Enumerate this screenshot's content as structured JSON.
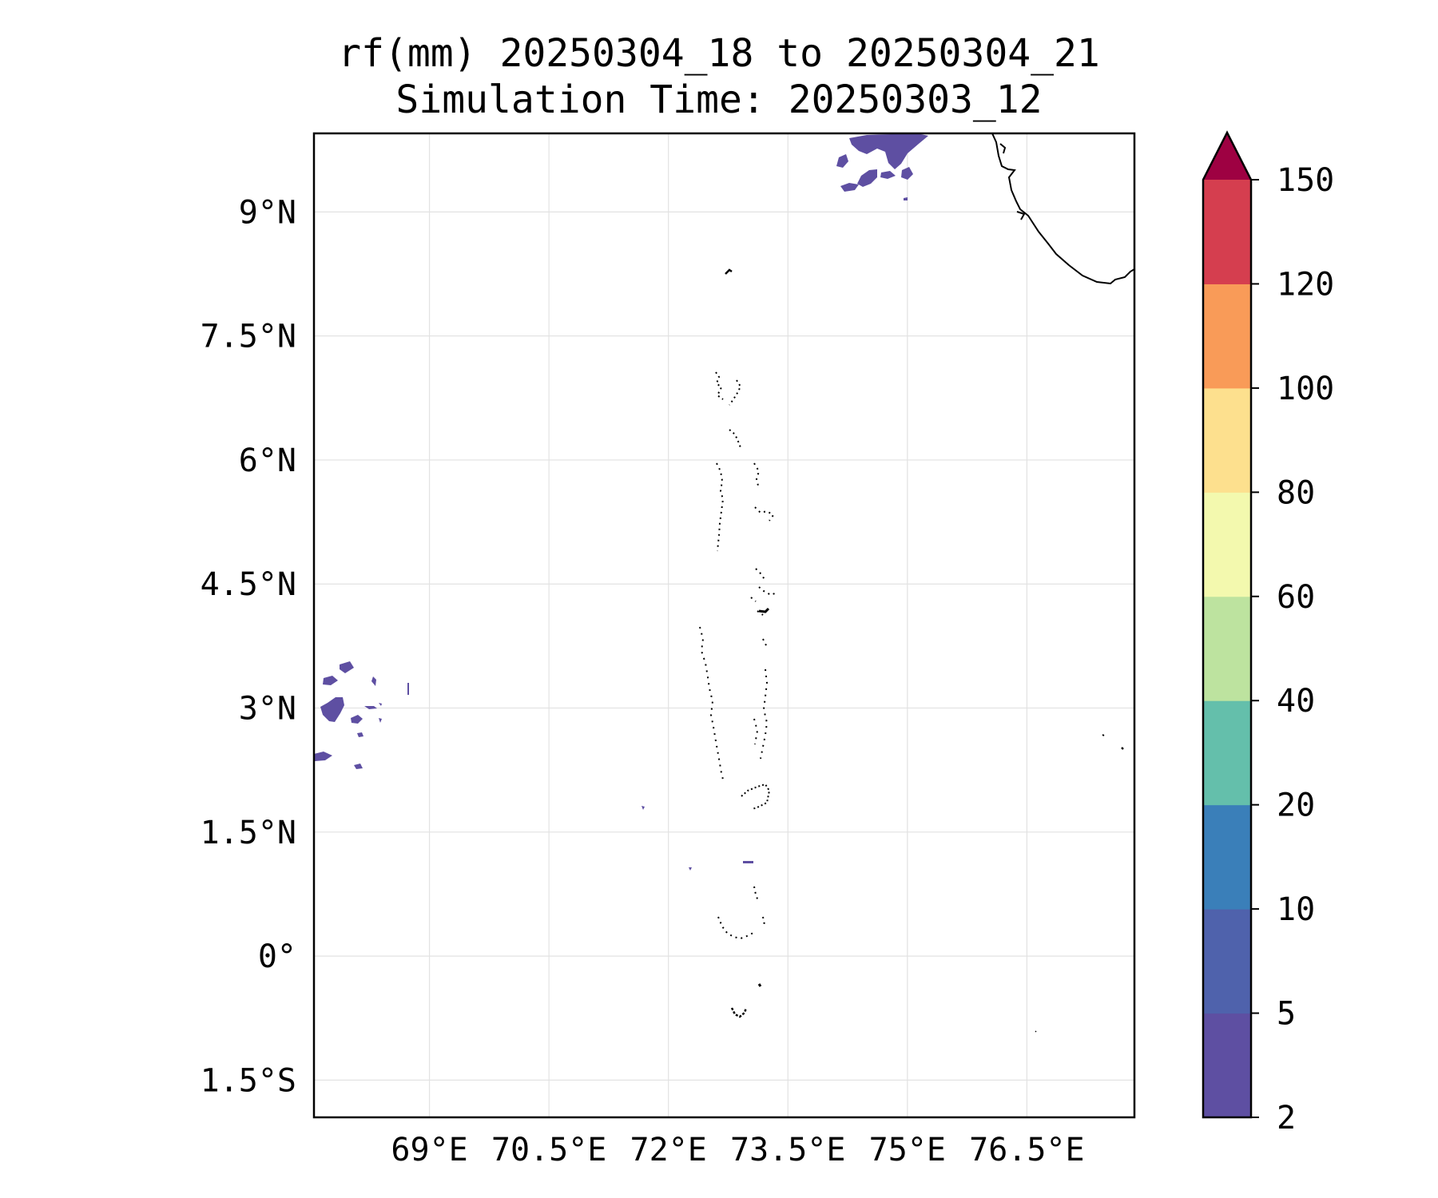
{
  "title": {
    "line1": "rf(mm) 20250304_18 to 20250304_21",
    "line2": "Simulation Time: 20250303_12"
  },
  "map": {
    "lon_range": [
      67.55,
      77.85
    ],
    "lat_range": [
      -1.95,
      9.95
    ],
    "lon_ticks": [
      {
        "value": 69.0,
        "label": "69°E"
      },
      {
        "value": 70.5,
        "label": "70.5°E"
      },
      {
        "value": 72.0,
        "label": "72°E"
      },
      {
        "value": 73.5,
        "label": "73.5°E"
      },
      {
        "value": 75.0,
        "label": "75°E"
      },
      {
        "value": 76.5,
        "label": "76.5°E"
      }
    ],
    "lat_ticks": [
      {
        "value": 9.0,
        "label": "9°N"
      },
      {
        "value": 7.5,
        "label": "7.5°N"
      },
      {
        "value": 6.0,
        "label": "6°N"
      },
      {
        "value": 4.5,
        "label": "4.5°N"
      },
      {
        "value": 3.0,
        "label": "3°N"
      },
      {
        "value": 1.5,
        "label": "1.5°N"
      },
      {
        "value": 0.0,
        "label": "0°"
      },
      {
        "value": -1.5,
        "label": "1.5°S"
      }
    ],
    "gridlines": true
  },
  "colorbar": {
    "extend": "max",
    "extend_color": "#9e0142",
    "levels": [
      {
        "label": "2",
        "color": "#5e4fa2"
      },
      {
        "label": "5",
        "color": "#4f62ac"
      },
      {
        "label": "10",
        "color": "#3a7fb9"
      },
      {
        "label": "20",
        "color": "#64bfab"
      },
      {
        "label": "40",
        "color": "#bde39f"
      },
      {
        "label": "60",
        "color": "#f3f9ae"
      },
      {
        "label": "80",
        "color": "#fde08e"
      },
      {
        "label": "100",
        "color": "#f99b58"
      },
      {
        "label": "120",
        "color": "#d53e4f"
      },
      {
        "label": "150",
        "color": ""
      }
    ]
  },
  "rain_color": "#5e4fa2"
}
